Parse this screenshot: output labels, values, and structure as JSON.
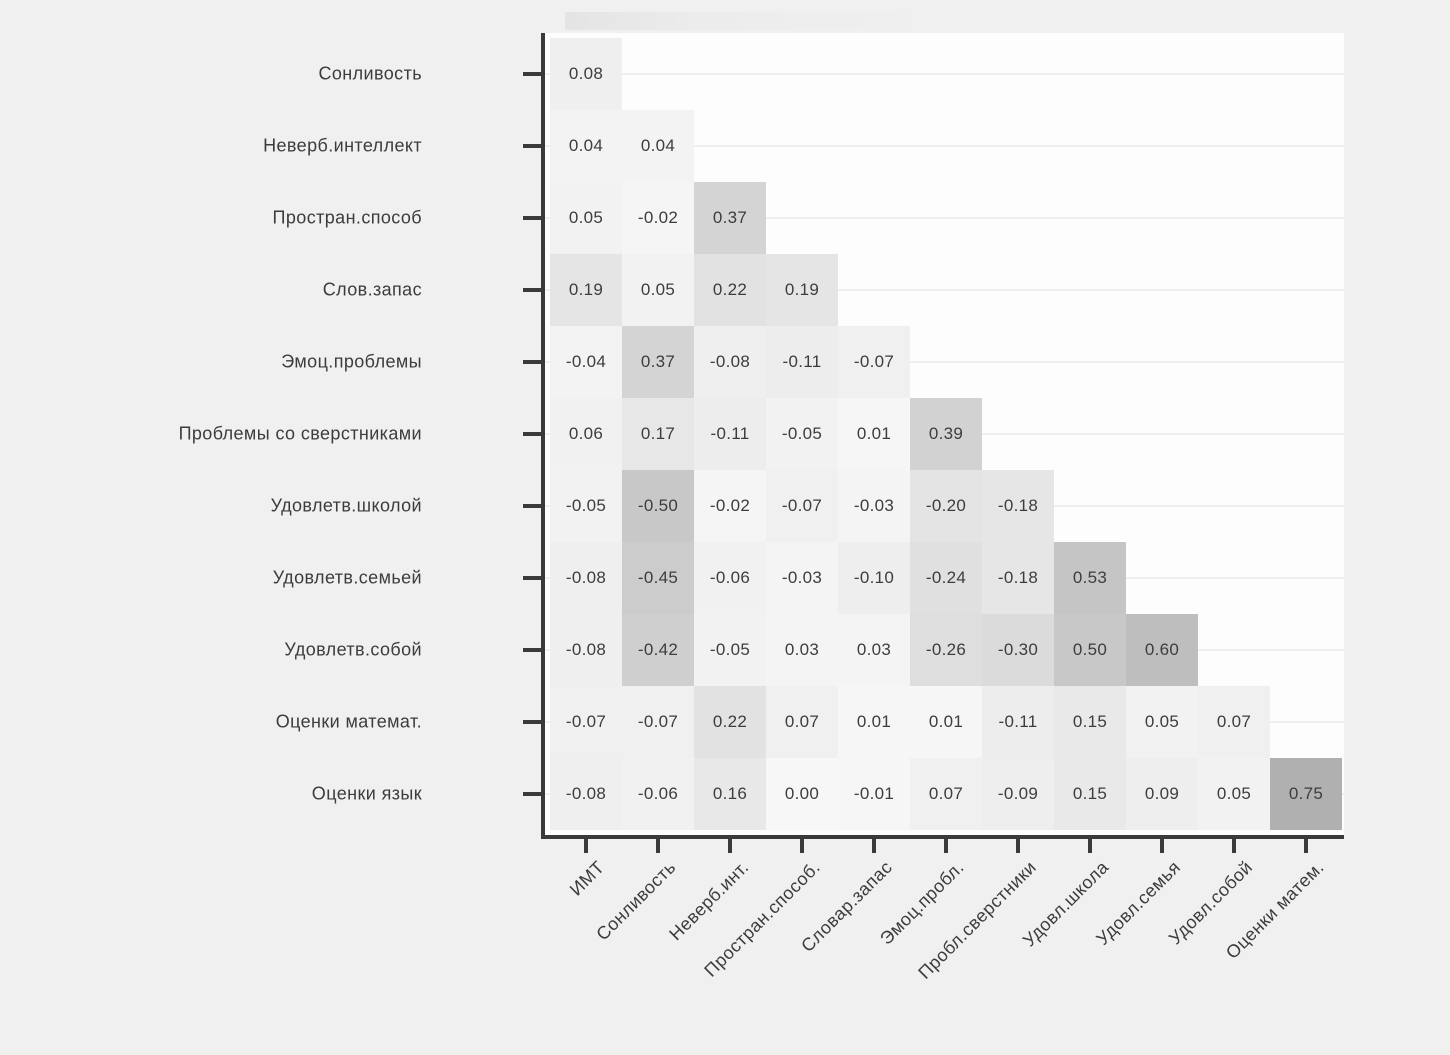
{
  "chart_data": {
    "type": "heatmap",
    "title": "",
    "subtitle": "",
    "legend": "none",
    "shape": "lower-triangle",
    "value_decimals": 2,
    "x_labels": [
      "ИМТ",
      "Сонливость",
      "Неверб.инт.",
      "Простран.способ.",
      "Словар.запас",
      "Эмоц.пробл.",
      "Пробл.сверстники",
      "Удовл.школа",
      "Удовл.семья",
      "Удовл.собой",
      "Оценки матем."
    ],
    "y_labels": [
      "Сонливость",
      "Неверб.интеллект",
      "Простран.способ",
      "Слов.запас",
      "Эмоц.проблемы",
      "Проблемы со сверстниками",
      "Удовлетв.школой",
      "Удовлетв.семьей",
      "Удовлетв.собой",
      "Оценки математ.",
      "Оценки язык"
    ],
    "rows": [
      [
        0.08
      ],
      [
        0.04,
        0.04
      ],
      [
        0.05,
        -0.02,
        0.37
      ],
      [
        0.19,
        0.05,
        0.22,
        0.19
      ],
      [
        -0.04,
        0.37,
        -0.08,
        -0.11,
        -0.07
      ],
      [
        0.06,
        0.17,
        -0.11,
        -0.05,
        0.01,
        0.39
      ],
      [
        -0.05,
        -0.5,
        -0.02,
        -0.07,
        -0.03,
        -0.2,
        -0.18
      ],
      [
        -0.08,
        -0.45,
        -0.06,
        -0.03,
        -0.1,
        -0.24,
        -0.18,
        0.53
      ],
      [
        -0.08,
        -0.42,
        -0.05,
        0.03,
        0.03,
        -0.26,
        -0.3,
        0.5,
        0.6
      ],
      [
        -0.07,
        -0.07,
        0.22,
        0.07,
        0.01,
        0.01,
        -0.11,
        0.15,
        0.05,
        0.07
      ],
      [
        -0.08,
        -0.06,
        0.16,
        0.0,
        -0.01,
        0.07,
        -0.09,
        0.15,
        0.09,
        0.05,
        0.75
      ]
    ],
    "colors": {
      "page_bg": "#f0f0f0",
      "plot_bg": "#fdfdfd",
      "axis": "#3a3a3a",
      "text": "#3c3c3c",
      "gridline": "#f0f0f0",
      "cell_gray_at_zero": 247,
      "cell_gray_slope_per_unit": 95
    },
    "grid": "horizontal-faint"
  }
}
